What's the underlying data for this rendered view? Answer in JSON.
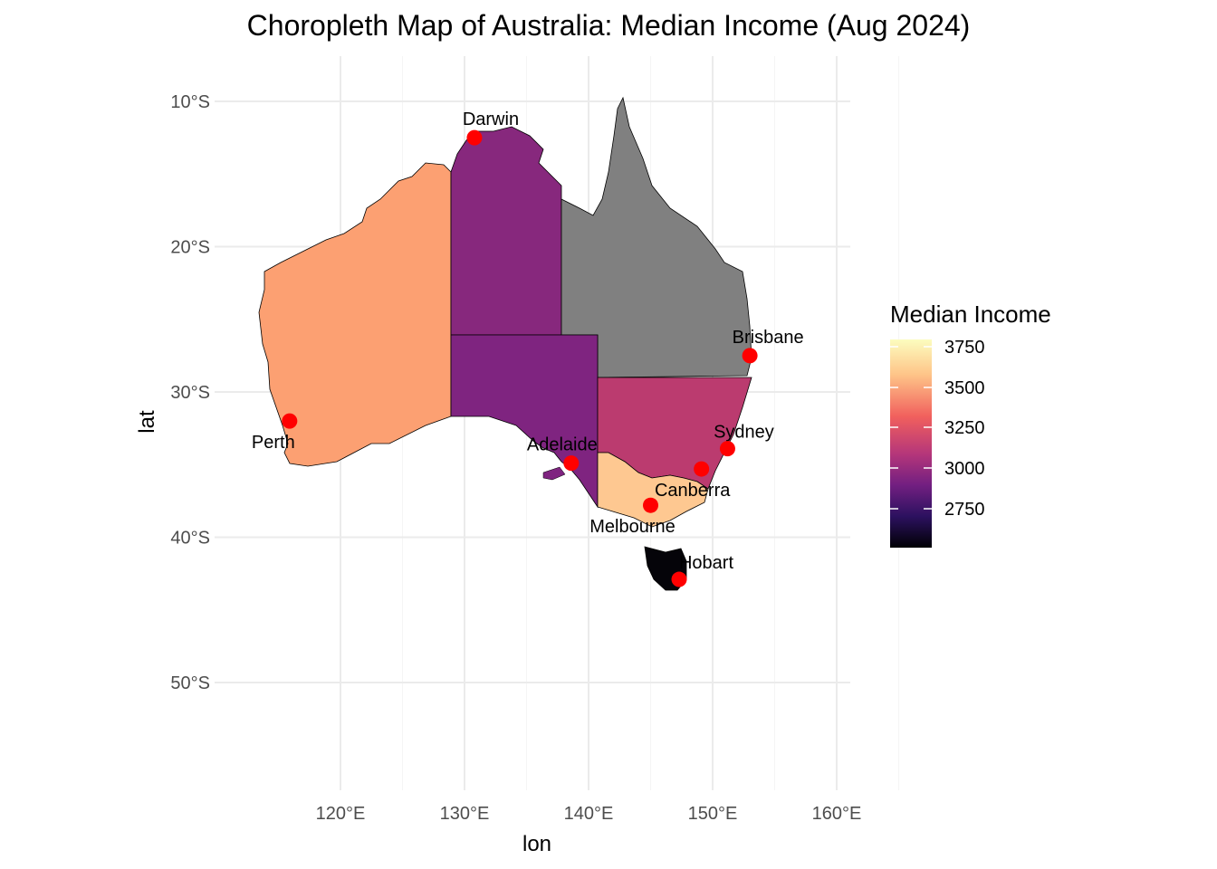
{
  "title": "Choropleth Map of Australia: Median Income (Aug 2024)",
  "chart_data": {
    "type": "map",
    "title": "Choropleth Map of Australia: Median Income (Aug 2024)",
    "xlabel": "lon",
    "ylabel": "lat",
    "x_ticks": [
      "120°E",
      "130°E",
      "140°E",
      "150°E",
      "160°E"
    ],
    "y_ticks": [
      "10°S",
      "20°S",
      "30°S",
      "40°S",
      "50°S"
    ],
    "legend": {
      "title": "Median Income",
      "placement": "right",
      "ticks": [
        "3750",
        "3500",
        "3250",
        "3000",
        "2750"
      ],
      "colors": [
        "#fcfdbf",
        "#fec488",
        "#f1605d",
        "#b5367a",
        "#721f81",
        "#2c115f",
        "#000004"
      ]
    },
    "regions": [
      {
        "name": "Western Australia",
        "value": 3560,
        "color": "#fca072"
      },
      {
        "name": "Northern Territory",
        "value": 3020,
        "color": "#87287d"
      },
      {
        "name": "Queensland",
        "value": null,
        "color": "#808080"
      },
      {
        "name": "South Australia",
        "value": 3000,
        "color": "#7f2480"
      },
      {
        "name": "New South Wales",
        "value": 3300,
        "color": "#bb3b6f"
      },
      {
        "name": "Victoria",
        "value": 3680,
        "color": "#fec891"
      },
      {
        "name": "Tasmania",
        "value": 2600,
        "color": "#050409"
      }
    ],
    "cities": [
      {
        "name": "Darwin",
        "lon": 130.8,
        "lat": -12.5
      },
      {
        "name": "Brisbane",
        "lon": 153.0,
        "lat": -27.5
      },
      {
        "name": "Perth",
        "lon": 115.9,
        "lat": -32.0
      },
      {
        "name": "Sydney",
        "lon": 151.2,
        "lat": -33.9
      },
      {
        "name": "Adelaide",
        "lon": 138.6,
        "lat": -34.9
      },
      {
        "name": "Canberra",
        "lon": 149.1,
        "lat": -35.3
      },
      {
        "name": "Melbourne",
        "lon": 145.0,
        "lat": -37.8
      },
      {
        "name": "Hobart",
        "lon": 147.3,
        "lat": -42.9
      }
    ]
  }
}
